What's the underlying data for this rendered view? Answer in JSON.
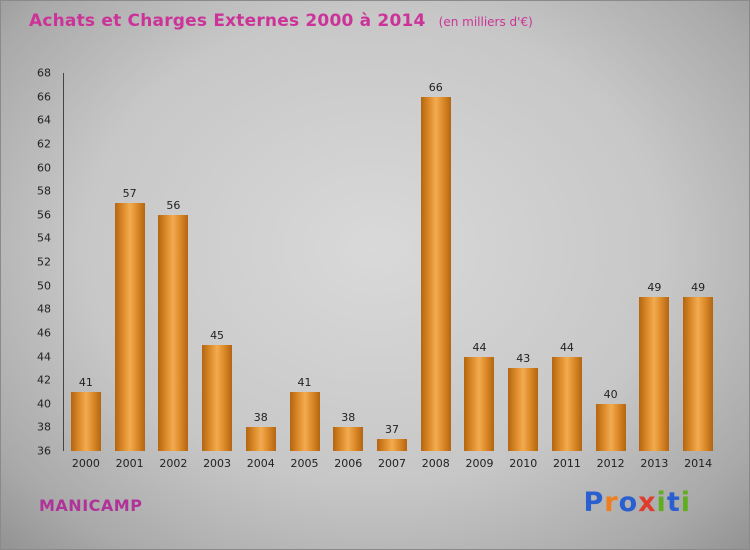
{
  "header": {
    "title": "Achats et Charges Externes 2000 à 2014",
    "subtitle": "(en milliers d'€)",
    "title_color": "#cc3399"
  },
  "footer": {
    "company": "MANICAMP",
    "company_color": "#b03399"
  },
  "logo": {
    "name": "Proxiti",
    "letters": [
      {
        "ch": "P",
        "color": "#2a5fd0"
      },
      {
        "ch": "r",
        "color": "#f07d1e"
      },
      {
        "ch": "o",
        "color": "#2a5fd0"
      },
      {
        "ch": "x",
        "color": "#e03c2e"
      },
      {
        "ch": "i",
        "color": "#5fae1f"
      },
      {
        "ch": "t",
        "color": "#2a5fd0"
      },
      {
        "ch": "i",
        "color": "#5fae1f"
      }
    ]
  },
  "chart_data": {
    "type": "bar",
    "title": "Achats et Charges Externes 2000 à 2014",
    "subtitle": "(en milliers d'€)",
    "categories": [
      "2000",
      "2001",
      "2002",
      "2003",
      "2004",
      "2005",
      "2006",
      "2007",
      "2008",
      "2009",
      "2010",
      "2011",
      "2012",
      "2013",
      "2014"
    ],
    "values": [
      41,
      57,
      56,
      45,
      38,
      41,
      38,
      37,
      66,
      44,
      43,
      44,
      40,
      49,
      49
    ],
    "xlabel": "",
    "ylabel": "",
    "ylim": [
      36,
      68
    ],
    "ytick_step": 2,
    "grid": false,
    "legend": false,
    "bar_color": "#e08f2e",
    "bar_color_dark": "#b4650f",
    "bar_color_light": "#f2ab52"
  }
}
